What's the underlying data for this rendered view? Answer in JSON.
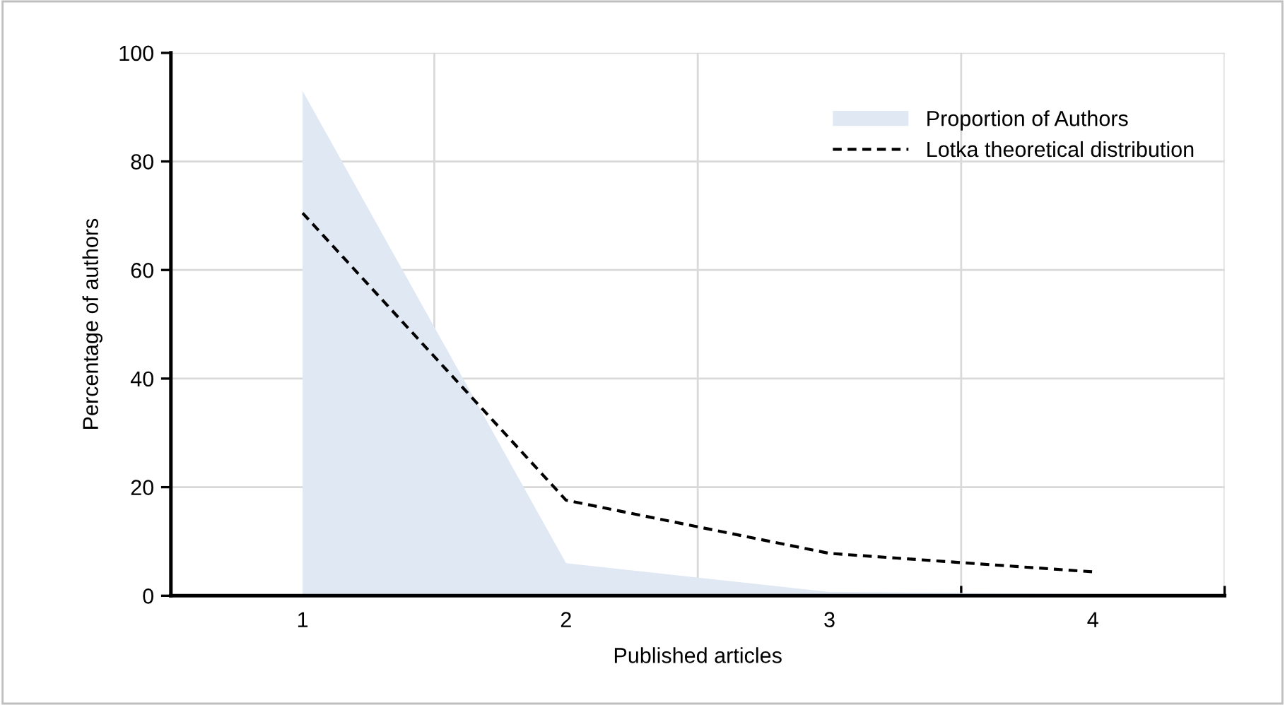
{
  "chart_data": {
    "type": "area",
    "xlabel": "Published articles",
    "ylabel": "Percentage of authors",
    "categories": [
      "1",
      "2",
      "3",
      "4"
    ],
    "series": [
      {
        "name": "Proportion of Authors",
        "color": "#e0e8f4",
        "values": [
          93,
          6,
          0.7,
          0.3
        ]
      },
      {
        "name": "Lotka theoretical distribution",
        "type": "line",
        "color": "#000000",
        "line_style": "dashed",
        "values": [
          70.5,
          17.6,
          7.8,
          4.4
        ]
      }
    ],
    "ylim": [
      0,
      100
    ],
    "yticks": [
      0,
      20,
      40,
      60,
      80,
      100
    ],
    "grid": true,
    "legend": "top right"
  }
}
